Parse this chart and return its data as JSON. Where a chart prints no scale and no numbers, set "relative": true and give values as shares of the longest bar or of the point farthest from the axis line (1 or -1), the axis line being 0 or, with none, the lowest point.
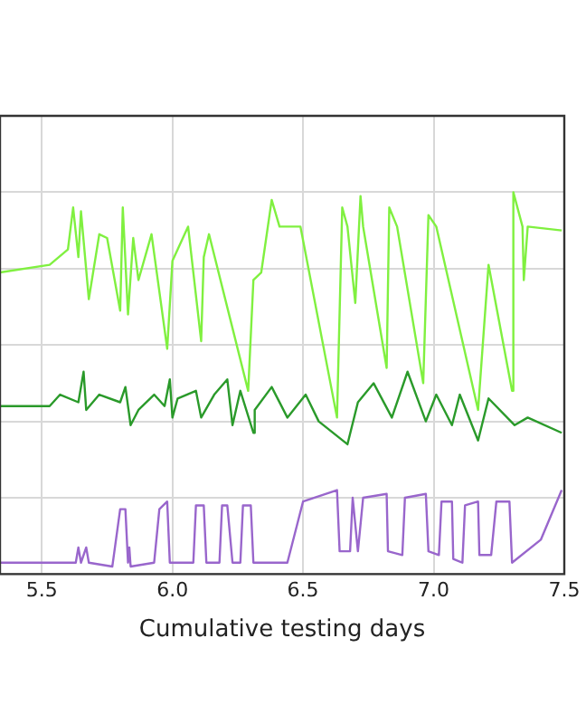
{
  "chart_data": {
    "type": "line",
    "relative": true,
    "xlabel": "Cumulative testing days",
    "xlim": [
      5.34,
      7.5
    ],
    "xticks": [
      {
        "value": 5.5,
        "label": "5.5"
      },
      {
        "value": 6,
        "label": "6.0"
      },
      {
        "value": 6.5,
        "label": "6.5"
      },
      {
        "value": 7,
        "label": "7.0"
      },
      {
        "value": 7.5,
        "label": "7.5"
      }
    ],
    "grid": true,
    "legend": false,
    "marker": "none",
    "line_style": "solid",
    "series": [
      {
        "color": "#80f040",
        "x": [
          5.34,
          5.53,
          5.6,
          5.62,
          5.64,
          5.65,
          5.68,
          5.72,
          5.75,
          5.8,
          5.81,
          5.83,
          5.85,
          5.87,
          5.92,
          5.98,
          6.0,
          6.06,
          6.11,
          6.12,
          6.14,
          6.29,
          6.31,
          6.34,
          6.38,
          6.41,
          6.49,
          6.63,
          6.65,
          6.67,
          6.7,
          6.72,
          6.73,
          6.82,
          6.83,
          6.86,
          6.96,
          6.98,
          7.01,
          7.17,
          7.21,
          7.3,
          7.305,
          7.34,
          7.345,
          7.36,
          7.49
        ],
        "values": [
          0.79,
          0.81,
          0.85,
          0.96,
          0.83,
          0.95,
          0.72,
          0.89,
          0.88,
          0.69,
          0.96,
          0.68,
          0.88,
          0.77,
          0.89,
          0.59,
          0.82,
          0.91,
          0.61,
          0.83,
          0.89,
          0.48,
          0.77,
          0.79,
          0.98,
          0.91,
          0.91,
          0.41,
          0.96,
          0.91,
          0.71,
          0.99,
          0.91,
          0.54,
          0.96,
          0.91,
          0.5,
          0.94,
          0.91,
          0.43,
          0.81,
          0.48,
          1.0,
          0.91,
          0.77,
          0.91,
          0.9
        ]
      },
      {
        "color": "#2a9a2a",
        "x": [
          5.34,
          5.53,
          5.57,
          5.64,
          5.66,
          5.67,
          5.72,
          5.8,
          5.82,
          5.84,
          5.87,
          5.93,
          5.97,
          5.99,
          6.0,
          6.02,
          6.09,
          6.11,
          6.16,
          6.21,
          6.23,
          6.26,
          6.31,
          6.315,
          6.38,
          6.44,
          6.51,
          6.56,
          6.67,
          6.71,
          6.77,
          6.84,
          6.9,
          6.97,
          7.01,
          7.07,
          7.1,
          7.17,
          7.21,
          7.31,
          7.36,
          7.49
        ],
        "values": [
          0.44,
          0.44,
          0.47,
          0.45,
          0.53,
          0.43,
          0.47,
          0.45,
          0.49,
          0.39,
          0.43,
          0.47,
          0.44,
          0.51,
          0.41,
          0.46,
          0.48,
          0.41,
          0.47,
          0.51,
          0.39,
          0.48,
          0.37,
          0.43,
          0.49,
          0.41,
          0.47,
          0.4,
          0.34,
          0.45,
          0.5,
          0.41,
          0.53,
          0.4,
          0.47,
          0.39,
          0.47,
          0.35,
          0.46,
          0.39,
          0.41,
          0.37
        ]
      },
      {
        "color": "#9966cc",
        "x": [
          5.34,
          5.63,
          5.64,
          5.65,
          5.67,
          5.68,
          5.77,
          5.8,
          5.82,
          5.83,
          5.835,
          5.84,
          5.93,
          5.95,
          5.98,
          5.99,
          6.08,
          6.09,
          6.12,
          6.13,
          6.18,
          6.19,
          6.21,
          6.23,
          6.26,
          6.27,
          6.3,
          6.31,
          6.44,
          6.5,
          6.63,
          6.64,
          6.68,
          6.69,
          6.71,
          6.73,
          6.82,
          6.825,
          6.88,
          6.89,
          6.97,
          6.98,
          7.02,
          7.03,
          7.07,
          7.075,
          7.11,
          7.12,
          7.17,
          7.175,
          7.22,
          7.24,
          7.29,
          7.3,
          7.41,
          7.49
        ],
        "values": [
          0.03,
          0.03,
          0.07,
          0.03,
          0.07,
          0.03,
          0.02,
          0.17,
          0.17,
          0.03,
          0.07,
          0.02,
          0.03,
          0.17,
          0.19,
          0.03,
          0.03,
          0.18,
          0.18,
          0.03,
          0.03,
          0.18,
          0.18,
          0.03,
          0.03,
          0.18,
          0.18,
          0.03,
          0.03,
          0.19,
          0.22,
          0.06,
          0.06,
          0.2,
          0.06,
          0.2,
          0.21,
          0.06,
          0.05,
          0.2,
          0.21,
          0.06,
          0.05,
          0.19,
          0.19,
          0.04,
          0.03,
          0.18,
          0.19,
          0.05,
          0.05,
          0.19,
          0.19,
          0.03,
          0.09,
          0.22
        ]
      }
    ]
  }
}
